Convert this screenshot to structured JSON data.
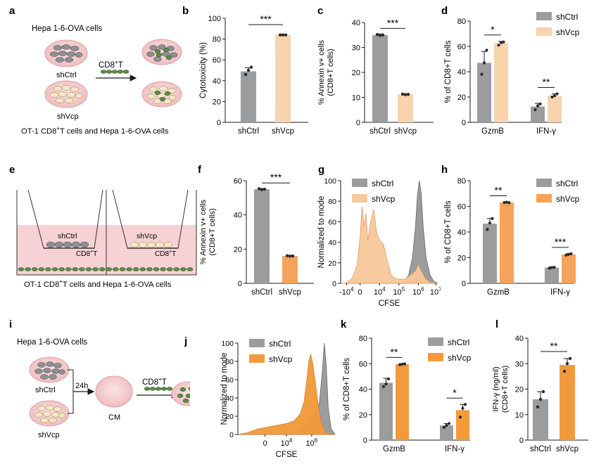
{
  "colors": {
    "grey": "#9b9c9e",
    "peach": "#f8d3ae",
    "orange": "#f5a35a",
    "orange_strong": "#f39a3c",
    "cell_green": "#5c8b48",
    "cell_grey": "#8e8f92",
    "cell_cream": "#f6e6c3",
    "dish": "#f0c3c6",
    "insert_pink": "#f4cfd1",
    "dots": "#2a2a2a"
  },
  "panel_letters": [
    "a",
    "b",
    "c",
    "d",
    "e",
    "f",
    "g",
    "h",
    "i",
    "j",
    "k",
    "l"
  ],
  "panel_a": {
    "title": "Hepa 1-6-OVA cells",
    "dish1": "shCtrl",
    "dish2": "shVcp",
    "arrow_label": "CD8",
    "arrow_label_sup": "+",
    "arrow_label_tail": "T",
    "caption": "OT-1 CD8",
    "caption_sup": "+",
    "caption_tail": "T cells and Hepa 1-6-OVA cells"
  },
  "panel_e": {
    "insert1": "shCtrl",
    "insert2": "shVcp",
    "tcell": "CD8",
    "tcell_sup": "+",
    "tcell_tail": "T",
    "caption": "OT-1 CD8",
    "caption_sup": "+",
    "caption_tail": "T cells and Hepa 1-6-OVA cells"
  },
  "panel_i": {
    "title": "Hepa 1-6-OVA cells",
    "dish1": "shCtrl",
    "dish2": "shVcp",
    "time": "24h",
    "cm": "CM",
    "arrow_label": "CD8",
    "arrow_label_sup": "+",
    "arrow_label_tail": "T"
  },
  "chart_data": [
    {
      "id": "b",
      "type": "bar",
      "ylabel": "Cytotoxicity (%)",
      "categories": [
        "shCtrl",
        "shVcp"
      ],
      "values": [
        49,
        84
      ],
      "errors": [
        3.5,
        0.5
      ],
      "points": [
        [
          46,
          50,
          53
        ],
        [
          84,
          84,
          84
        ]
      ],
      "ylim": [
        0,
        100
      ],
      "yticks": [
        "0",
        "20",
        "40",
        "60",
        "80",
        "100"
      ],
      "significance": "***"
    },
    {
      "id": "c",
      "type": "bar",
      "ylabel": "% Annexin v+ cells",
      "ylabel2": "(CD8+T cells)",
      "categories": [
        "shCtrl",
        "shVcp"
      ],
      "values": [
        35,
        11.2
      ],
      "errors": [
        0.4,
        0.2
      ],
      "points": [
        [
          35.2,
          34.8,
          35.0
        ],
        [
          11.3,
          11.1,
          11.2
        ]
      ],
      "ylim": [
        0,
        40
      ],
      "yticks": [
        "0",
        "10",
        "20",
        "30",
        "40"
      ],
      "significance": "***"
    },
    {
      "id": "d",
      "type": "grouped-bar",
      "ylabel": "% of CD8+T cells",
      "groups": [
        "GzmB",
        "IFN-γ"
      ],
      "series": [
        {
          "name": "shCtrl",
          "values": [
            47,
            12.5
          ],
          "errors": [
            9,
            2.5
          ],
          "points": [
            [
              38,
              47,
              57
            ],
            [
              10,
              13,
              14.5
            ]
          ]
        },
        {
          "name": "shVcp",
          "values": [
            62.5,
            21
          ],
          "errors": [
            1.5,
            1.5
          ],
          "points": [
            [
              61,
              63,
              63.5
            ],
            [
              20,
              21,
              22.5
            ]
          ]
        }
      ],
      "ylim": [
        0,
        80
      ],
      "yticks": [
        "0",
        "20",
        "40",
        "60",
        "80"
      ],
      "significance": [
        "*",
        "**"
      ]
    },
    {
      "id": "f",
      "type": "bar",
      "ylabel": "% Annexin v+ cells",
      "ylabel2": "(CD8+T cells)",
      "categories": [
        "shCtrl",
        "shVcp"
      ],
      "values": [
        55,
        16
      ],
      "errors": [
        0.4,
        0.3
      ],
      "points": [
        [
          55.3,
          54.8,
          55.0
        ],
        [
          16.1,
          15.9,
          16.0
        ]
      ],
      "ylim": [
        0,
        60
      ],
      "yticks": [
        "0",
        "20",
        "40",
        "60"
      ],
      "significance": "***"
    },
    {
      "id": "g",
      "type": "histogram",
      "ylabel": "Normalized to mode",
      "xlabel": "CFSE",
      "xticks": [
        "-10",
        "0",
        "10",
        "10",
        "10",
        "10"
      ],
      "xtick_exps": [
        "4",
        "",
        "4",
        "5",
        "6",
        "7"
      ],
      "yticks": [
        "0",
        "20",
        "40",
        "60",
        "80",
        "100"
      ],
      "series": [
        {
          "name": "shCtrl",
          "color": "#9b9c9e"
        },
        {
          "name": "shVcp",
          "color": "#f8c79a"
        }
      ]
    },
    {
      "id": "h",
      "type": "grouped-bar",
      "ylabel": "% of CD8+T cells",
      "groups": [
        "GzmB",
        "IFN-γ"
      ],
      "series": [
        {
          "name": "shCtrl",
          "values": [
            46.5,
            12.2
          ],
          "errors": [
            4,
            0.6
          ],
          "points": [
            [
              42,
              47,
              50.5
            ],
            [
              11.8,
              12.3,
              12.5
            ]
          ]
        },
        {
          "name": "shVcp",
          "values": [
            63,
            22.5
          ],
          "errors": [
            0.3,
            0.6
          ],
          "points": [
            [
              63,
              63.2,
              62.8
            ],
            [
              22,
              22.6,
              23
            ]
          ]
        }
      ],
      "ylim": [
        0,
        80
      ],
      "yticks": [
        "0",
        "20",
        "40",
        "60",
        "80"
      ],
      "significance": [
        "**",
        "***"
      ]
    },
    {
      "id": "j",
      "type": "histogram",
      "ylabel": "Normalized to mode",
      "xlabel": "CFSE",
      "xticks": [
        "0",
        "10",
        "10"
      ],
      "xtick_exps": [
        "",
        "4",
        "6"
      ],
      "yticks": [
        "0",
        "20",
        "40",
        "60",
        "80",
        "100"
      ],
      "series": [
        {
          "name": "shCtrl",
          "color": "#9b9c9e"
        },
        {
          "name": "shVcp",
          "color": "#f39a3c"
        }
      ]
    },
    {
      "id": "k",
      "type": "grouped-bar",
      "ylabel": "% of CD8+T cells",
      "groups": [
        "GzmB",
        "IFN-γ"
      ],
      "series": [
        {
          "name": "shCtrl",
          "values": [
            45,
            11.5
          ],
          "errors": [
            3.5,
            1.5
          ],
          "points": [
            [
              42,
              44,
              48
            ],
            [
              10,
              11.5,
              13
            ]
          ]
        },
        {
          "name": "shVcp",
          "values": [
            59.5,
            23.5
          ],
          "errors": [
            0.4,
            4.5
          ],
          "points": [
            [
              59.2,
              59.6,
              59.8
            ],
            [
              18,
              25,
              28
            ]
          ]
        }
      ],
      "ylim": [
        0,
        80
      ],
      "yticks": [
        "0",
        "20",
        "40",
        "60",
        "80"
      ],
      "significance": [
        "**",
        "*"
      ]
    },
    {
      "id": "l",
      "type": "bar",
      "ylabel": "IFN-γ (ng/ml)",
      "ylabel2": "(CD8+T cells)",
      "categories": [
        "shCtrl",
        "shVcp"
      ],
      "values": [
        16,
        29.5
      ],
      "errors": [
        3,
        2.5
      ],
      "points": [
        [
          13,
          16,
          19
        ],
        [
          27,
          30,
          32
        ]
      ],
      "ylim": [
        0,
        40
      ],
      "yticks": [
        "0",
        "10",
        "20",
        "30",
        "40"
      ],
      "significance": "**"
    }
  ]
}
